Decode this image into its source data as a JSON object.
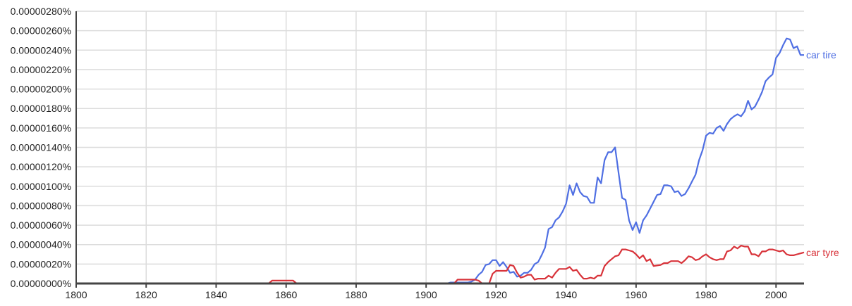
{
  "chart_data": {
    "type": "line",
    "title": "",
    "xlabel": "",
    "ylabel": "",
    "xlim": [
      1800,
      2008
    ],
    "ylim": [
      0,
      2.8e-06
    ],
    "grid": true,
    "legend": "inline labels at right end of each line",
    "x_ticks": [
      1800,
      1820,
      1840,
      1860,
      1880,
      1900,
      1920,
      1940,
      1960,
      1980,
      2000
    ],
    "x_tick_labels": [
      "1800",
      "1820",
      "1840",
      "1860",
      "1880",
      "1900",
      "1920",
      "1940",
      "1960",
      "1980",
      "2000"
    ],
    "y_ticks": [
      0,
      2e-07,
      4e-07,
      6e-07,
      8e-07,
      1e-06,
      1.2e-06,
      1.4e-06,
      1.6e-06,
      1.8e-06,
      2e-06,
      2.2e-06,
      2.4e-06,
      2.6e-06,
      2.8e-06
    ],
    "y_tick_labels": [
      "0.00000000%",
      "0.00000020%",
      "0.00000040%",
      "0.00000060%",
      "0.00000080%",
      "0.00000100%",
      "0.00000120%",
      "0.00000140%",
      "0.00000160%",
      "0.00000180%",
      "0.00000200%",
      "0.00000220%",
      "0.00000240%",
      "0.00000260%",
      "0.00000280%"
    ],
    "series": [
      {
        "name": "car tire",
        "color": "#4f6fe3",
        "points": [
          [
            1800,
            0
          ],
          [
            1906,
            0
          ],
          [
            1907,
            1e-08
          ],
          [
            1912,
            1e-08
          ],
          [
            1913,
            2e-08
          ],
          [
            1914,
            4e-08
          ],
          [
            1915,
            9e-08
          ],
          [
            1916,
            1.2e-07
          ],
          [
            1917,
            1.9e-07
          ],
          [
            1918,
            2e-07
          ],
          [
            1919,
            2.4e-07
          ],
          [
            1920,
            2.4e-07
          ],
          [
            1921,
            1.8e-07
          ],
          [
            1922,
            2.2e-07
          ],
          [
            1923,
            1.7e-07
          ],
          [
            1924,
            1.1e-07
          ],
          [
            1925,
            1.2e-07
          ],
          [
            1926,
            7e-08
          ],
          [
            1927,
            8e-08
          ],
          [
            1928,
            1.1e-07
          ],
          [
            1929,
            1.1e-07
          ],
          [
            1930,
            1.4e-07
          ],
          [
            1931,
            2e-07
          ],
          [
            1932,
            2.2e-07
          ],
          [
            1933,
            2.9e-07
          ],
          [
            1934,
            3.7e-07
          ],
          [
            1935,
            5.6e-07
          ],
          [
            1936,
            5.8e-07
          ],
          [
            1937,
            6.5e-07
          ],
          [
            1938,
            6.8e-07
          ],
          [
            1939,
            7.4e-07
          ],
          [
            1940,
            8.2e-07
          ],
          [
            1941,
            1.01e-06
          ],
          [
            1942,
            9.1e-07
          ],
          [
            1943,
            1.03e-06
          ],
          [
            1944,
            9.4e-07
          ],
          [
            1945,
            9e-07
          ],
          [
            1946,
            8.9e-07
          ],
          [
            1947,
            8.3e-07
          ],
          [
            1948,
            8.3e-07
          ],
          [
            1949,
            1.09e-06
          ],
          [
            1950,
            1.03e-06
          ],
          [
            1951,
            1.27e-06
          ],
          [
            1952,
            1.35e-06
          ],
          [
            1953,
            1.35e-06
          ],
          [
            1954,
            1.4e-06
          ],
          [
            1955,
            1.14e-06
          ],
          [
            1956,
            8.8e-07
          ],
          [
            1957,
            8.6e-07
          ],
          [
            1958,
            6.5e-07
          ],
          [
            1959,
            5.5e-07
          ],
          [
            1960,
            6.3e-07
          ],
          [
            1961,
            5.2e-07
          ],
          [
            1962,
            6.5e-07
          ],
          [
            1963,
            7e-07
          ],
          [
            1964,
            7.7e-07
          ],
          [
            1965,
            8.4e-07
          ],
          [
            1966,
            9.1e-07
          ],
          [
            1967,
            9.2e-07
          ],
          [
            1968,
            1.01e-06
          ],
          [
            1969,
            1.01e-06
          ],
          [
            1970,
            1e-06
          ],
          [
            1971,
            9.4e-07
          ],
          [
            1972,
            9.5e-07
          ],
          [
            1973,
            9e-07
          ],
          [
            1974,
            9.2e-07
          ],
          [
            1975,
            9.8e-07
          ],
          [
            1976,
            1.05e-06
          ],
          [
            1977,
            1.12e-06
          ],
          [
            1978,
            1.27e-06
          ],
          [
            1979,
            1.37e-06
          ],
          [
            1980,
            1.52e-06
          ],
          [
            1981,
            1.55e-06
          ],
          [
            1982,
            1.54e-06
          ],
          [
            1983,
            1.6e-06
          ],
          [
            1984,
            1.62e-06
          ],
          [
            1985,
            1.57e-06
          ],
          [
            1986,
            1.64e-06
          ],
          [
            1987,
            1.69e-06
          ],
          [
            1988,
            1.72e-06
          ],
          [
            1989,
            1.74e-06
          ],
          [
            1990,
            1.72e-06
          ],
          [
            1991,
            1.77e-06
          ],
          [
            1992,
            1.88e-06
          ],
          [
            1993,
            1.79e-06
          ],
          [
            1994,
            1.82e-06
          ],
          [
            1995,
            1.89e-06
          ],
          [
            1996,
            1.97e-06
          ],
          [
            1997,
            2.08e-06
          ],
          [
            1998,
            2.12e-06
          ],
          [
            1999,
            2.15e-06
          ],
          [
            2000,
            2.32e-06
          ],
          [
            2001,
            2.37e-06
          ],
          [
            2002,
            2.45e-06
          ],
          [
            2003,
            2.52e-06
          ],
          [
            2004,
            2.51e-06
          ],
          [
            2005,
            2.42e-06
          ],
          [
            2006,
            2.44e-06
          ],
          [
            2007,
            2.35e-06
          ],
          [
            2008,
            2.35e-06
          ]
        ]
      },
      {
        "name": "car tyre",
        "color": "#d8333a",
        "points": [
          [
            1800,
            0
          ],
          [
            1855,
            0
          ],
          [
            1856,
            3e-08
          ],
          [
            1862,
            3e-08
          ],
          [
            1863,
            0
          ],
          [
            1908,
            0
          ],
          [
            1909,
            4e-08
          ],
          [
            1914,
            4e-08
          ],
          [
            1915,
            3e-08
          ],
          [
            1916,
            0
          ],
          [
            1918,
            0
          ],
          [
            1919,
            1e-07
          ],
          [
            1920,
            1.3e-07
          ],
          [
            1923,
            1.3e-07
          ],
          [
            1924,
            1.9e-07
          ],
          [
            1925,
            1.8e-07
          ],
          [
            1926,
            1.1e-07
          ],
          [
            1927,
            6e-08
          ],
          [
            1928,
            7e-08
          ],
          [
            1929,
            9e-08
          ],
          [
            1930,
            9e-08
          ],
          [
            1931,
            4e-08
          ],
          [
            1932,
            5e-08
          ],
          [
            1933,
            5e-08
          ],
          [
            1934,
            5e-08
          ],
          [
            1935,
            8e-08
          ],
          [
            1936,
            6e-08
          ],
          [
            1937,
            1.1e-07
          ],
          [
            1938,
            1.5e-07
          ],
          [
            1939,
            1.5e-07
          ],
          [
            1940,
            1.5e-07
          ],
          [
            1941,
            1.7e-07
          ],
          [
            1942,
            1.3e-07
          ],
          [
            1943,
            1.4e-07
          ],
          [
            1944,
            9e-08
          ],
          [
            1945,
            5e-08
          ],
          [
            1946,
            5e-08
          ],
          [
            1947,
            6e-08
          ],
          [
            1948,
            5e-08
          ],
          [
            1949,
            8e-08
          ],
          [
            1950,
            8e-08
          ],
          [
            1951,
            1.8e-07
          ],
          [
            1952,
            2.2e-07
          ],
          [
            1953,
            2.5e-07
          ],
          [
            1954,
            2.8e-07
          ],
          [
            1955,
            2.9e-07
          ],
          [
            1956,
            3.5e-07
          ],
          [
            1957,
            3.5e-07
          ],
          [
            1958,
            3.4e-07
          ],
          [
            1959,
            3.3e-07
          ],
          [
            1960,
            3e-07
          ],
          [
            1961,
            2.6e-07
          ],
          [
            1962,
            2.9e-07
          ],
          [
            1963,
            2.3e-07
          ],
          [
            1964,
            2.5e-07
          ],
          [
            1965,
            1.8e-07
          ],
          [
            1966,
            1.85e-07
          ],
          [
            1967,
            1.9e-07
          ],
          [
            1968,
            2.1e-07
          ],
          [
            1969,
            2.1e-07
          ],
          [
            1970,
            2.3e-07
          ],
          [
            1971,
            2.3e-07
          ],
          [
            1972,
            2.3e-07
          ],
          [
            1973,
            2.1e-07
          ],
          [
            1974,
            2.4e-07
          ],
          [
            1975,
            2.8e-07
          ],
          [
            1976,
            2.7e-07
          ],
          [
            1977,
            2.4e-07
          ],
          [
            1978,
            2.5e-07
          ],
          [
            1979,
            2.8e-07
          ],
          [
            1980,
            3e-07
          ],
          [
            1981,
            2.7e-07
          ],
          [
            1982,
            2.5e-07
          ],
          [
            1983,
            2.4e-07
          ],
          [
            1984,
            2.5e-07
          ],
          [
            1985,
            2.5e-07
          ],
          [
            1986,
            3.3e-07
          ],
          [
            1987,
            3.4e-07
          ],
          [
            1988,
            3.8e-07
          ],
          [
            1989,
            3.6e-07
          ],
          [
            1990,
            3.9e-07
          ],
          [
            1991,
            3.8e-07
          ],
          [
            1992,
            3.8e-07
          ],
          [
            1993,
            3e-07
          ],
          [
            1994,
            3e-07
          ],
          [
            1995,
            2.8e-07
          ],
          [
            1996,
            3.3e-07
          ],
          [
            1997,
            3.3e-07
          ],
          [
            1998,
            3.5e-07
          ],
          [
            1999,
            3.5e-07
          ],
          [
            2000,
            3.4e-07
          ],
          [
            2001,
            3.3e-07
          ],
          [
            2002,
            3.4e-07
          ],
          [
            2003,
            3e-07
          ],
          [
            2004,
            2.9e-07
          ],
          [
            2005,
            2.9e-07
          ],
          [
            2006,
            3e-07
          ],
          [
            2007,
            3.1e-07
          ],
          [
            2008,
            3.2e-07
          ]
        ]
      }
    ]
  }
}
